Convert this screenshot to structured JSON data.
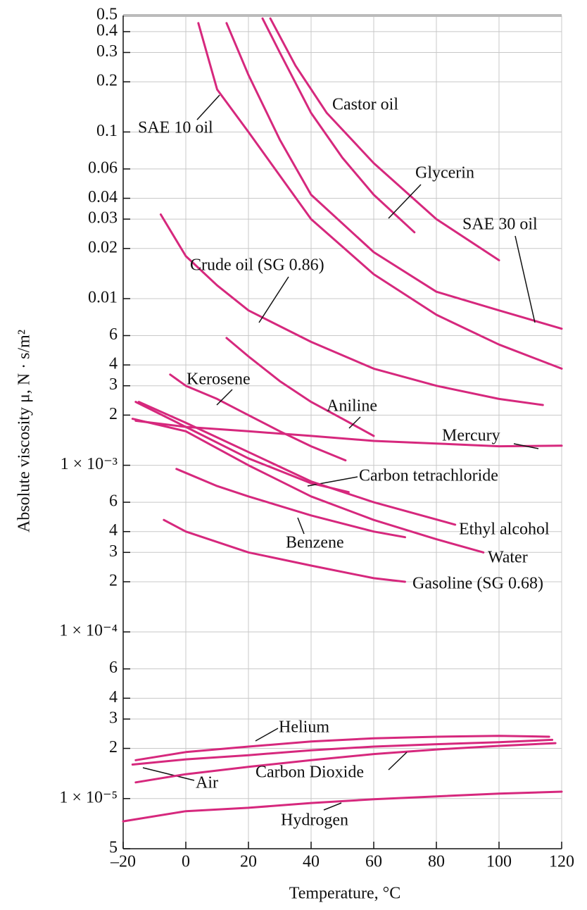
{
  "chart_data": {
    "type": "line",
    "x_label": "Temperature, °C",
    "y_label": "Absolute viscosity μ, N · s/m²",
    "log_y": true,
    "grid": true,
    "xlim": [
      -20,
      120
    ],
    "xticks": [
      {
        "value": -20,
        "label": "–20"
      },
      0,
      20,
      40,
      60,
      80,
      100,
      120
    ],
    "ylim": [
      5e-06,
      0.5
    ],
    "yticks": [
      0.5,
      0.4,
      0.3,
      0.2,
      0.1,
      0.06,
      0.04,
      0.03,
      0.02,
      0.01,
      {
        "value": 0.006,
        "label": "6"
      },
      {
        "value": 0.004,
        "label": "4"
      },
      {
        "value": 0.003,
        "label": "3"
      },
      {
        "value": 0.002,
        "label": "2"
      },
      {
        "value": 0.001,
        "label": "1 × 10⁻³"
      },
      {
        "value": 0.0006,
        "label": "6"
      },
      {
        "value": 0.0004,
        "label": "4"
      },
      {
        "value": 0.0003,
        "label": "3"
      },
      {
        "value": 0.0002,
        "label": "2"
      },
      {
        "value": 0.0001,
        "label": "1 × 10⁻⁴"
      },
      {
        "value": 6e-05,
        "label": "6"
      },
      {
        "value": 4e-05,
        "label": "4"
      },
      {
        "value": 3e-05,
        "label": "3"
      },
      {
        "value": 2e-05,
        "label": "2"
      },
      {
        "value": 1e-05,
        "label": "1 × 10⁻⁵"
      },
      {
        "value": 5e-06,
        "label": "5"
      }
    ],
    "series": [
      {
        "name": "SAE 10 oil",
        "color": "#d6287d",
        "x": [
          4,
          10,
          20,
          40,
          60,
          80,
          100,
          120
        ],
        "values": [
          0.45,
          0.18,
          0.1,
          0.03,
          0.014,
          0.008,
          0.0053,
          0.0038
        ]
      },
      {
        "name": "Castor oil",
        "color": "#d6287d",
        "x": [
          27,
          35,
          45,
          60,
          80,
          100
        ],
        "values": [
          0.48,
          0.25,
          0.13,
          0.065,
          0.03,
          0.017
        ]
      },
      {
        "name": "Glycerin",
        "color": "#d6287d",
        "x": [
          24.5,
          30,
          40,
          50,
          60,
          73
        ],
        "values": [
          0.48,
          0.3,
          0.13,
          0.07,
          0.042,
          0.025
        ]
      },
      {
        "name": "SAE 30 oil",
        "color": "#d6287d",
        "x": [
          13,
          20,
          30,
          40,
          60,
          80,
          100,
          120
        ],
        "values": [
          0.45,
          0.22,
          0.09,
          0.042,
          0.019,
          0.011,
          0.0085,
          0.0066
        ]
      },
      {
        "name": "Crude oil (SG 0.86)",
        "color": "#d6287d",
        "x": [
          -8,
          0,
          10,
          20,
          40,
          60,
          80,
          100,
          114
        ],
        "values": [
          0.032,
          0.018,
          0.012,
          0.0085,
          0.0055,
          0.0038,
          0.003,
          0.0025,
          0.0023
        ]
      },
      {
        "name": "Kerosene",
        "color": "#d6287d",
        "x": [
          -5,
          0,
          10,
          20,
          30,
          40,
          51
        ],
        "values": [
          0.0035,
          0.003,
          0.0025,
          0.002,
          0.0016,
          0.0013,
          0.00107
        ]
      },
      {
        "name": "Aniline",
        "color": "#d6287d",
        "x": [
          13,
          20,
          30,
          40,
          50,
          60
        ],
        "values": [
          0.0058,
          0.0045,
          0.0032,
          0.0024,
          0.0019,
          0.0015
        ]
      },
      {
        "name": "Mercury",
        "color": "#d6287d",
        "x": [
          -16,
          0,
          20,
          40,
          60,
          80,
          100,
          120
        ],
        "values": [
          0.00185,
          0.0017,
          0.0016,
          0.0015,
          0.0014,
          0.00135,
          0.0013,
          0.00131
        ]
      },
      {
        "name": "Carbon tetrachloride",
        "color": "#d6287d",
        "x": [
          -16,
          0,
          20,
          40,
          52
        ],
        "values": [
          0.0024,
          0.0017,
          0.0011,
          0.00078,
          0.00069
        ]
      },
      {
        "name": "Ethyl alcohol",
        "color": "#d6287d",
        "x": [
          -15,
          0,
          20,
          40,
          60,
          86
        ],
        "values": [
          0.0024,
          0.0018,
          0.0012,
          0.0008,
          0.0006,
          0.00044
        ]
      },
      {
        "name": "Water",
        "color": "#d6287d",
        "x": [
          -17,
          0,
          20,
          40,
          60,
          80,
          95
        ],
        "values": [
          0.0019,
          0.0016,
          0.001,
          0.00065,
          0.00047,
          0.00036,
          0.0003
        ]
      },
      {
        "name": "Gasoline (SG 0.68)",
        "color": "#d6287d",
        "x": [
          -7,
          0,
          20,
          40,
          60,
          70
        ],
        "values": [
          0.00047,
          0.0004,
          0.0003,
          0.00025,
          0.00021,
          0.0002
        ]
      },
      {
        "name": "Benzene",
        "color": "#d6287d",
        "x": [
          -3,
          10,
          20,
          40,
          60,
          70
        ],
        "values": [
          0.00095,
          0.00075,
          0.00065,
          0.0005,
          0.0004,
          0.00037
        ]
      },
      {
        "name": "Helium",
        "color": "#d6287d",
        "x": [
          -16,
          0,
          20,
          40,
          60,
          80,
          100,
          116
        ],
        "values": [
          1.7e-05,
          1.9e-05,
          2.05e-05,
          2.2e-05,
          2.3e-05,
          2.35e-05,
          2.38e-05,
          2.35e-05
        ]
      },
      {
        "name": "Air",
        "color": "#d6287d",
        "x": [
          -17,
          0,
          20,
          40,
          60,
          80,
          100,
          117
        ],
        "values": [
          1.6e-05,
          1.72e-05,
          1.82e-05,
          1.95e-05,
          2.05e-05,
          2.12e-05,
          2.18e-05,
          2.25e-05
        ]
      },
      {
        "name": "Carbon Dioxide",
        "color": "#d6287d",
        "x": [
          -16,
          0,
          20,
          40,
          60,
          80,
          100,
          118
        ],
        "values": [
          1.25e-05,
          1.4e-05,
          1.55e-05,
          1.7e-05,
          1.85e-05,
          1.97e-05,
          2.07e-05,
          2.15e-05
        ]
      },
      {
        "name": "Hydrogen",
        "color": "#d6287d",
        "x": [
          -20,
          0,
          20,
          40,
          60,
          80,
          100,
          120
        ],
        "values": [
          7.3e-06,
          8.4e-06,
          8.8e-06,
          9.4e-06,
          9.9e-06,
          1.03e-05,
          1.07e-05,
          1.1e-05
        ]
      }
    ]
  }
}
